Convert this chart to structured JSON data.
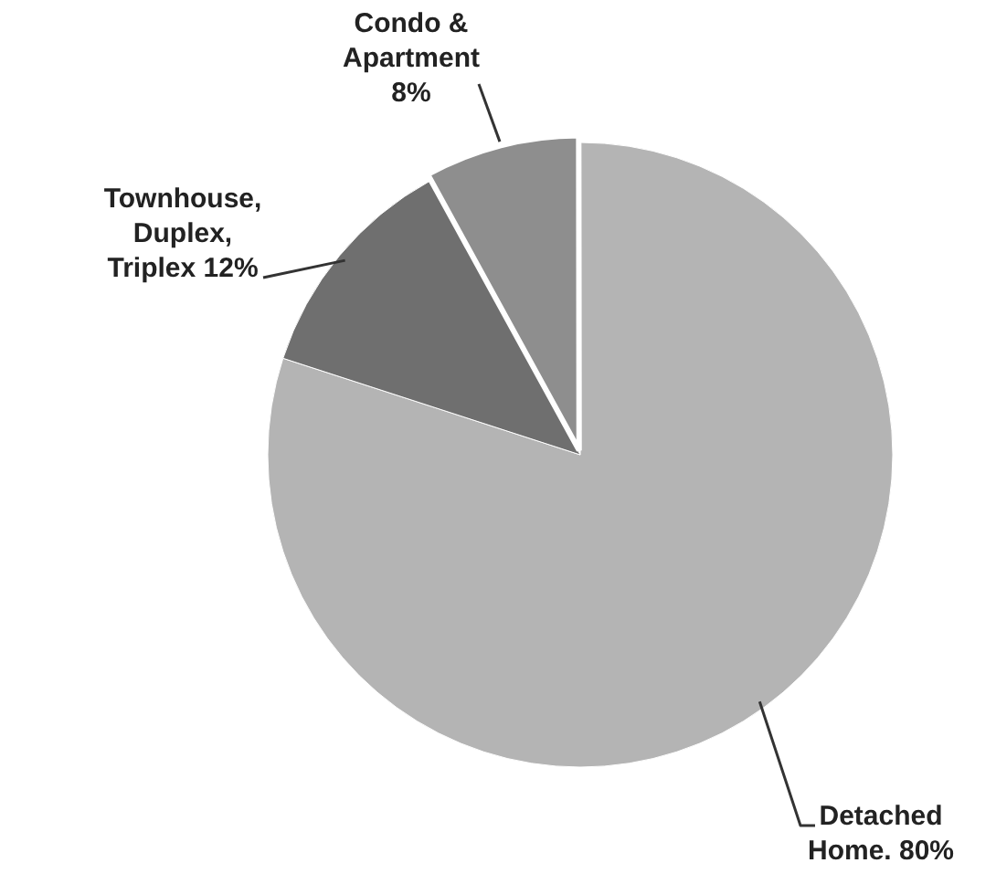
{
  "chart_data": {
    "type": "pie",
    "categories": [
      "Detached Home.",
      "Townhouse, Duplex, Triplex",
      "Condo & Apartment"
    ],
    "values": [
      80,
      12,
      8
    ],
    "colors": [
      "#b4b4b4",
      "#6f6f6f",
      "#8e8e8e"
    ],
    "value_labels": [
      "80%",
      "12%",
      "8%"
    ]
  }
}
